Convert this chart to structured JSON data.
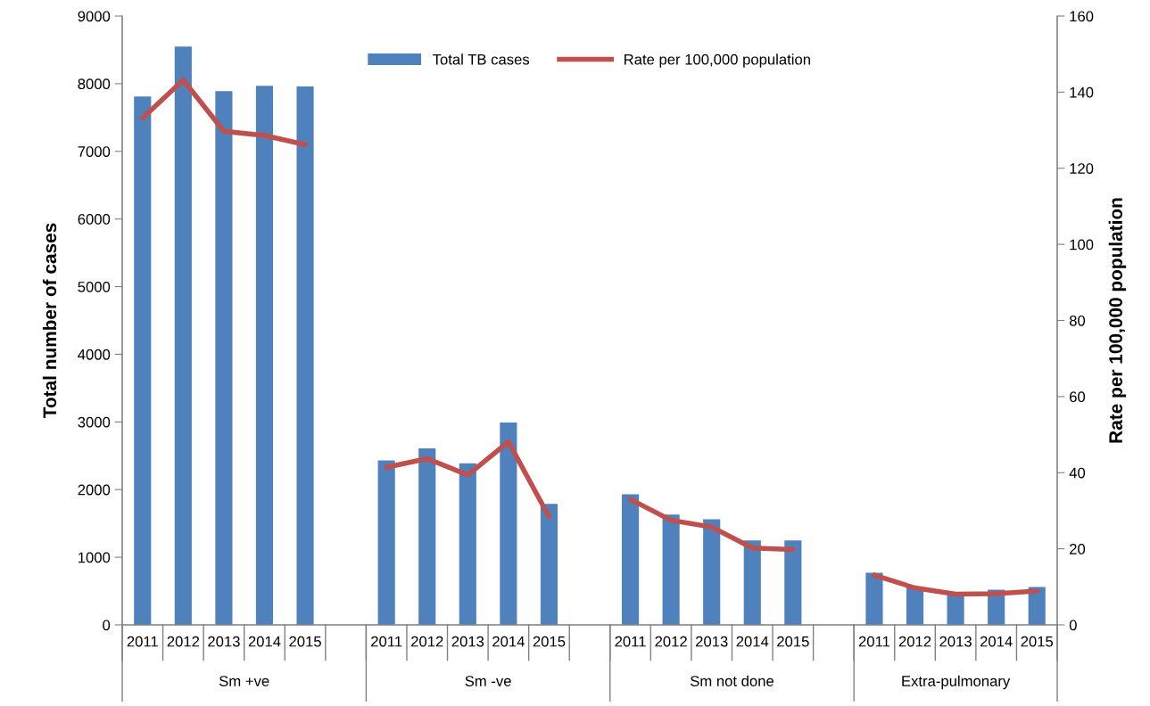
{
  "chart_data": {
    "type": "bar",
    "ylabel": "Total number of cases",
    "y2label": "Rate per 100,000 population",
    "categories": [
      "2011",
      "2012",
      "2013",
      "2014",
      "2015",
      null,
      "2011",
      "2012",
      "2013",
      "2014",
      "2015",
      null,
      "2011",
      "2012",
      "2013",
      "2014",
      "2015",
      null,
      "2011",
      "2012",
      "2013",
      "2014",
      "2015"
    ],
    "annotations": [
      "Sm +ve",
      "Sm -ve",
      "Sm not done",
      "Extra-pulmonary"
    ],
    "series": [
      {
        "name": "Total TB cases",
        "color": "#4f81bd",
        "values": [
          7810,
          8550,
          7890,
          7970,
          7960,
          null,
          2430,
          2610,
          2390,
          2990,
          1790,
          null,
          1930,
          1630,
          1560,
          1250,
          1250,
          null,
          770,
          560,
          460,
          520,
          560
        ]
      },
      {
        "name": "Rate per 100,000 population",
        "type": "line",
        "axis": "y2",
        "color": "#c0504d",
        "values": [
          133.2,
          143.2,
          129.7,
          128.6,
          126.2,
          null,
          41.4,
          43.7,
          39.4,
          48.1,
          28.4,
          null,
          33.0,
          27.5,
          25.7,
          20.2,
          19.8,
          null,
          13.1,
          9.7,
          8.1,
          8.2,
          8.9
        ]
      }
    ],
    "ylim": [
      0,
      9000
    ],
    "yticks": [
      0,
      1000,
      2000,
      3000,
      4000,
      5000,
      6000,
      7000,
      8000,
      9000
    ],
    "y2lim": [
      0,
      160
    ],
    "y2ticks": [
      0,
      20,
      40,
      60,
      80,
      100,
      120,
      140,
      160
    ],
    "grid": false,
    "legend": "top"
  }
}
